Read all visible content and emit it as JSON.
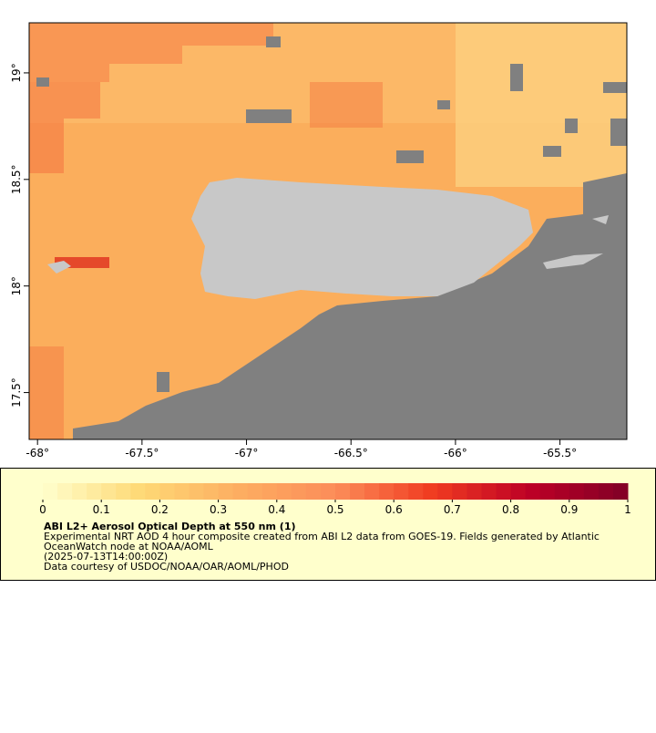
{
  "map": {
    "lonlim": [
      -68.04,
      -65.18
    ],
    "latlim": [
      17.28,
      19.235
    ],
    "lon_ticks": [
      {
        "value": -68,
        "label": "-68°"
      },
      {
        "value": -67.5,
        "label": "-67.5°"
      },
      {
        "value": -67,
        "label": "-67°"
      },
      {
        "value": -66.5,
        "label": "-66.5°"
      },
      {
        "value": -66,
        "label": "-66°"
      },
      {
        "value": -65.5,
        "label": "-65.5°"
      }
    ],
    "lat_ticks": [
      {
        "value": 17.5,
        "label": "17.5°"
      },
      {
        "value": 18,
        "label": "18°"
      },
      {
        "value": 18.5,
        "label": "18.5°"
      },
      {
        "value": 19,
        "label": "19°"
      }
    ]
  },
  "legend": {
    "colorbar_ticks": [
      0,
      0.1,
      0.2,
      0.3,
      0.4,
      0.5,
      0.6,
      0.7,
      0.8,
      0.9,
      1
    ],
    "title": "ABI L2+ Aerosol Optical Depth at 550 nm (1)",
    "lines": [
      "Experimental NRT AOD 4 hour composite created from ABI L2 data from GOES-19. Fields generated by Atlantic",
      "OceanWatch node at NOAA/AOML",
      "(2025-07-13T14:00:00Z)",
      "Data courtesy of USDOC/NOAA/OAR/AOML/PHOD"
    ]
  }
}
